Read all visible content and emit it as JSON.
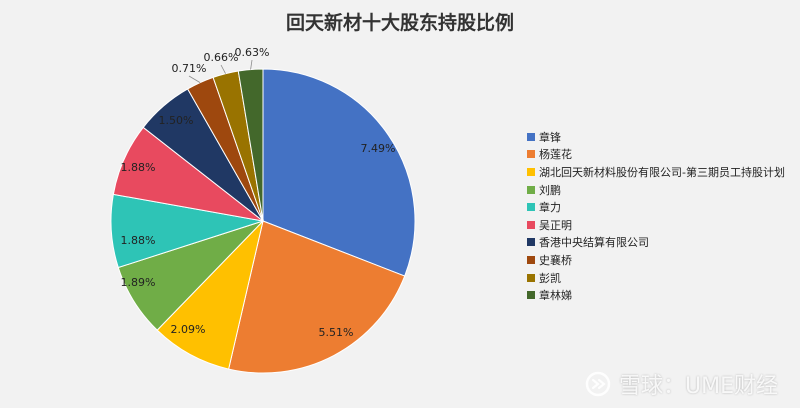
{
  "chart_data": {
    "type": "pie",
    "title": "回天新材十大股东持股比例",
    "legend_position": "right",
    "slices": [
      {
        "name": "章锋",
        "value": 7.49,
        "label": "7.49%",
        "color": "#4472C4"
      },
      {
        "name": "杨莲花",
        "value": 5.51,
        "label": "5.51%",
        "color": "#ED7D31"
      },
      {
        "name": "湖北回天新材料股份有限公司-第三期员工持股计划",
        "value": 2.09,
        "label": "2.09%",
        "color": "#FFC000"
      },
      {
        "name": "刘鹏",
        "value": 1.89,
        "label": "1.89%",
        "color": "#70AD47"
      },
      {
        "name": "章力",
        "value": 1.88,
        "label": "1.88%",
        "color": "#2EC4B6"
      },
      {
        "name": "吴正明",
        "value": 1.88,
        "label": "1.88%",
        "color": "#E84A5F"
      },
      {
        "name": "香港中央结算有限公司",
        "value": 1.5,
        "label": "1.50%",
        "color": "#203864"
      },
      {
        "name": "史襄桥",
        "value": 0.71,
        "label": "0.71%",
        "color": "#9E480E"
      },
      {
        "name": "彭凯",
        "value": 0.66,
        "label": "0.66%",
        "color": "#997300"
      },
      {
        "name": "章林娣",
        "value": 0.63,
        "label": "0.63%",
        "color": "#43682B"
      }
    ]
  },
  "watermark": {
    "text": "雪球：UME财经",
    "icon": "snowball-logo-icon"
  }
}
